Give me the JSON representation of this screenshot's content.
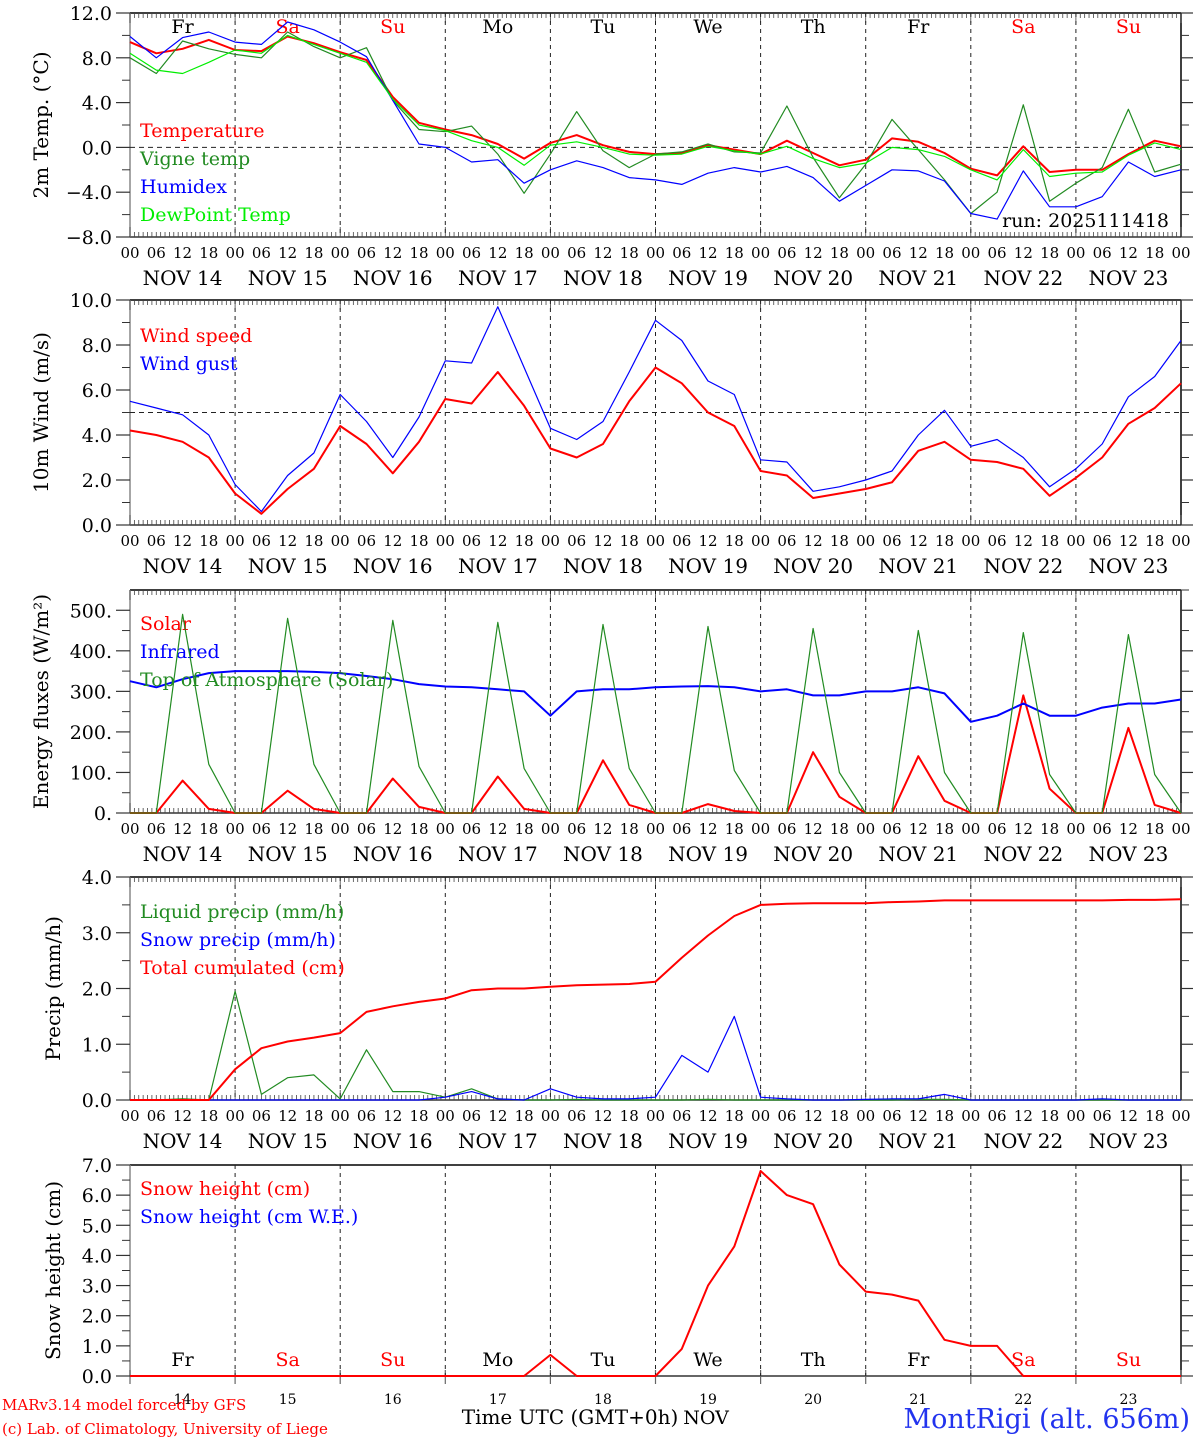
{
  "colors": {
    "red": "#ff0000",
    "green": "#228b22",
    "blue": "#0000ff",
    "lime": "#00ee00",
    "black": "#000000",
    "weekend": "#ff0000"
  },
  "x_axis": {
    "hour_ticks": [
      "00",
      "06",
      "12",
      "18"
    ],
    "final_tick": "00",
    "dates": [
      "NOV 14",
      "NOV 15",
      "NOV 16",
      "NOV 17",
      "NOV 18",
      "NOV 19",
      "NOV 20",
      "NOV 21",
      "NOV 22",
      "NOV 23"
    ],
    "day_numbers": [
      "14",
      "15",
      "16",
      "17",
      "18",
      "19",
      "20",
      "21",
      "22",
      "23"
    ],
    "weekdays": [
      {
        "label": "Fr",
        "weekend": false
      },
      {
        "label": "Sa",
        "weekend": true
      },
      {
        "label": "Su",
        "weekend": true
      },
      {
        "label": "Mo",
        "weekend": false
      },
      {
        "label": "Tu",
        "weekend": false
      },
      {
        "label": "We",
        "weekend": false
      },
      {
        "label": "Th",
        "weekend": false
      },
      {
        "label": "Fr",
        "weekend": false
      },
      {
        "label": "Sa",
        "weekend": true
      },
      {
        "label": "Su",
        "weekend": true
      }
    ],
    "time_label": "Time UTC (GMT+0h)",
    "month_label": "NOV"
  },
  "footer": {
    "model_line": "MARv3.14 model forced by GFS",
    "credit_line": "(c) Lab. of Climatology, University of Liege",
    "station": "MontRigi (alt. 656m)"
  },
  "chart_data": [
    {
      "type": "line",
      "title": "2m Temperature",
      "ylabel": "2m Temp. (°C)",
      "ylim": [
        -8,
        12
      ],
      "yticks": [
        "12.0",
        "8.0",
        "4.0",
        "0.0",
        "−4.0",
        "−8.0"
      ],
      "ytick_values": [
        12,
        8,
        4,
        0,
        -4,
        -8
      ],
      "reference_line": 0,
      "annotation": "run: 2025111418",
      "x_step_hours": 6,
      "x_start": "NOV 14 00",
      "series": [
        {
          "name": "Temperature",
          "color": "red",
          "values": [
            9.4,
            8.4,
            8.8,
            9.6,
            8.7,
            8.6,
            9.9,
            9.3,
            8.5,
            7.8,
            4.5,
            2.2,
            1.6,
            1.1,
            0.3,
            -1.0,
            0.4,
            1.1,
            0.2,
            -0.4,
            -0.6,
            -0.5,
            0.2,
            -0.2,
            -0.6,
            0.6,
            -0.5,
            -1.6,
            -1.1,
            0.8,
            0.5,
            -0.5,
            -1.9,
            -2.5,
            0.1,
            -2.2,
            -2.0,
            -2.0,
            -0.6,
            0.6,
            0.1
          ]
        },
        {
          "name": "Vigne temp",
          "color": "green",
          "values": [
            8.0,
            6.6,
            9.5,
            8.8,
            8.3,
            8.0,
            10.3,
            9.0,
            8.0,
            8.9,
            4.2,
            1.6,
            1.4,
            1.9,
            -0.6,
            -4.1,
            -0.6,
            3.2,
            -0.3,
            -1.8,
            -0.6,
            -0.4,
            0.3,
            -0.4,
            -0.5,
            3.7,
            -0.9,
            -4.5,
            -1.5,
            2.5,
            -0.2,
            -2.9,
            -5.9,
            -4.0,
            3.8,
            -4.8,
            -3.2,
            -1.8,
            3.4,
            -2.2,
            -1.5
          ]
        },
        {
          "name": "Humidex",
          "color": "blue",
          "values": [
            9.9,
            8.0,
            9.8,
            10.3,
            9.4,
            9.2,
            11.2,
            10.5,
            9.4,
            8.1,
            4.2,
            0.3,
            0.0,
            -1.3,
            -1.1,
            -3.2,
            -2.0,
            -1.2,
            -1.8,
            -2.7,
            -2.9,
            -3.3,
            -2.3,
            -1.8,
            -2.2,
            -1.7,
            -2.7,
            -4.8,
            -3.4,
            -2.0,
            -2.1,
            -3.0,
            -5.9,
            -6.4,
            -2.1,
            -5.3,
            -5.3,
            -4.4,
            -1.3,
            -2.6,
            -2.0
          ]
        },
        {
          "name": "DewPoint Temp",
          "color": "lime",
          "values": [
            8.4,
            6.9,
            6.6,
            7.6,
            8.7,
            8.4,
            10.0,
            9.2,
            8.4,
            7.6,
            4.3,
            2.0,
            1.5,
            0.6,
            0.0,
            -1.6,
            0.2,
            0.5,
            0.0,
            -0.6,
            -0.7,
            -0.6,
            0.1,
            -0.3,
            -0.6,
            0.1,
            -1.0,
            -1.8,
            -1.4,
            0.0,
            -0.2,
            -0.8,
            -2.0,
            -2.9,
            -0.2,
            -2.6,
            -2.3,
            -2.2,
            -0.7,
            0.4,
            -0.2
          ]
        }
      ]
    },
    {
      "type": "line",
      "title": "10m Wind",
      "ylabel": "10m Wind (m/s)",
      "ylim": [
        0,
        10
      ],
      "yticks": [
        "10.0",
        "8.0",
        "6.0",
        "4.0",
        "2.0",
        "0.0"
      ],
      "ytick_values": [
        10,
        8,
        6,
        4,
        2,
        0
      ],
      "reference_line": 5,
      "x_step_hours": 6,
      "x_start": "NOV 14 00",
      "series": [
        {
          "name": "Wind speed",
          "color": "red",
          "values": [
            4.2,
            4.0,
            3.7,
            3.0,
            1.4,
            0.5,
            1.6,
            2.5,
            4.4,
            3.6,
            2.3,
            3.7,
            5.6,
            5.4,
            6.8,
            5.3,
            3.4,
            3.0,
            3.6,
            5.5,
            7.0,
            6.3,
            5.0,
            4.4,
            2.4,
            2.2,
            1.2,
            1.4,
            1.6,
            1.9,
            3.3,
            3.7,
            2.9,
            2.8,
            2.5,
            1.3,
            2.1,
            3.0,
            4.5,
            5.2,
            6.3
          ]
        },
        {
          "name": "Wind gust",
          "color": "blue",
          "values": [
            5.5,
            5.2,
            4.9,
            4.0,
            1.8,
            0.6,
            2.2,
            3.2,
            5.8,
            4.6,
            3.0,
            4.8,
            7.3,
            7.2,
            9.7,
            7.0,
            4.3,
            3.8,
            4.6,
            6.8,
            9.1,
            8.2,
            6.4,
            5.8,
            2.9,
            2.8,
            1.5,
            1.7,
            2.0,
            2.4,
            4.0,
            5.1,
            3.5,
            3.8,
            3.0,
            1.7,
            2.5,
            3.6,
            5.7,
            6.6,
            8.2
          ]
        }
      ]
    },
    {
      "type": "line",
      "title": "Energy fluxes",
      "ylabel": "Energy fluxes (W/m²)",
      "ylim": [
        0,
        550
      ],
      "yticks": [
        "500.",
        "400.",
        "300.",
        "200.",
        "100.",
        "0."
      ],
      "ytick_values": [
        500,
        400,
        300,
        200,
        100,
        0
      ],
      "x_step_hours": 6,
      "x_start": "NOV 14 00",
      "series": [
        {
          "name": "Solar",
          "color": "red",
          "values": [
            0,
            0,
            80,
            10,
            0,
            0,
            55,
            10,
            0,
            0,
            85,
            15,
            0,
            0,
            90,
            10,
            0,
            0,
            130,
            20,
            0,
            0,
            22,
            5,
            0,
            0,
            150,
            40,
            0,
            0,
            140,
            30,
            0,
            0,
            290,
            60,
            0,
            0,
            210,
            20,
            0
          ]
        },
        {
          "name": "Infrared",
          "color": "blue",
          "values": [
            325,
            310,
            330,
            345,
            350,
            350,
            350,
            348,
            345,
            338,
            330,
            318,
            312,
            310,
            305,
            300,
            240,
            300,
            305,
            305,
            310,
            312,
            313,
            310,
            300,
            305,
            290,
            290,
            300,
            300,
            310,
            295,
            225,
            240,
            270,
            240,
            240,
            260,
            270,
            270,
            280
          ]
        },
        {
          "name": "Top of Atmosphere (Solar)",
          "color": "green",
          "values": [
            0,
            0,
            490,
            120,
            0,
            0,
            480,
            120,
            0,
            0,
            475,
            115,
            0,
            0,
            470,
            110,
            0,
            0,
            465,
            110,
            0,
            0,
            460,
            105,
            0,
            0,
            455,
            100,
            0,
            0,
            450,
            100,
            0,
            0,
            445,
            95,
            0,
            0,
            440,
            95,
            0
          ]
        }
      ]
    },
    {
      "type": "line",
      "title": "Precipitation",
      "ylabel": "Precip (mm/h)",
      "ylim": [
        0,
        4
      ],
      "yticks": [
        "4.0",
        "3.0",
        "2.0",
        "1.0",
        "0.0"
      ],
      "ytick_values": [
        4,
        3,
        2,
        1,
        0
      ],
      "x_step_hours": 6,
      "x_start": "NOV 14 00",
      "series": [
        {
          "name": "Liquid precip (mm/h)",
          "color": "green",
          "values": [
            0,
            0,
            0.02,
            0,
            1.95,
            0.1,
            0.4,
            0.45,
            0.02,
            0.9,
            0.15,
            0.15,
            0.05,
            0.2,
            0.02,
            0,
            0,
            0.01,
            0,
            0,
            0,
            0,
            0.01,
            0,
            0,
            0,
            0,
            0,
            0,
            0,
            0.01,
            0.01,
            0,
            0,
            0,
            0,
            0,
            0,
            0,
            0,
            0
          ]
        },
        {
          "name": "Snow precip (mm/h)",
          "color": "blue",
          "values": [
            0,
            0,
            0,
            0,
            0,
            0,
            0,
            0,
            0,
            0,
            0,
            0,
            0.05,
            0.15,
            0.02,
            0,
            0.2,
            0.05,
            0.02,
            0.02,
            0.05,
            0.8,
            0.5,
            1.5,
            0.05,
            0.02,
            0,
            0,
            0.01,
            0.02,
            0.02,
            0.1,
            0,
            0,
            0,
            0,
            0,
            0.02,
            0,
            0,
            0
          ]
        },
        {
          "name": "Total cumulated (cm)",
          "color": "red",
          "values": [
            0,
            0,
            0,
            0,
            0.55,
            0.93,
            1.05,
            1.12,
            1.2,
            1.58,
            1.68,
            1.76,
            1.82,
            1.97,
            2.0,
            2.0,
            2.03,
            2.06,
            2.07,
            2.08,
            2.12,
            2.55,
            2.95,
            3.3,
            3.5,
            3.52,
            3.53,
            3.53,
            3.53,
            3.55,
            3.56,
            3.58,
            3.58,
            3.58,
            3.58,
            3.58,
            3.58,
            3.58,
            3.59,
            3.59,
            3.6
          ]
        }
      ]
    },
    {
      "type": "line",
      "title": "Snow height",
      "ylabel": "Snow height (cm)",
      "ylim": [
        0,
        7
      ],
      "yticks": [
        "7.0",
        "6.0",
        "5.0",
        "4.0",
        "3.0",
        "2.0",
        "1.0",
        "0.0"
      ],
      "ytick_values": [
        7,
        6,
        5,
        4,
        3,
        2,
        1,
        0
      ],
      "x_step_hours": 6,
      "x_start": "NOV 14 00",
      "series": [
        {
          "name": "Snow height (cm)",
          "color": "red",
          "values": [
            0,
            0,
            0,
            0,
            0,
            0,
            0,
            0,
            0,
            0,
            0,
            0,
            0,
            0,
            0,
            0,
            0.7,
            0,
            0,
            0,
            0,
            0.9,
            3.0,
            4.3,
            6.8,
            6.0,
            5.7,
            3.7,
            2.8,
            2.7,
            2.5,
            1.2,
            1.0,
            1.0,
            0,
            0,
            0,
            0,
            0,
            0,
            0
          ]
        },
        {
          "name": "Snow height (cm W.E.)",
          "color": "blue",
          "values": []
        }
      ]
    }
  ]
}
